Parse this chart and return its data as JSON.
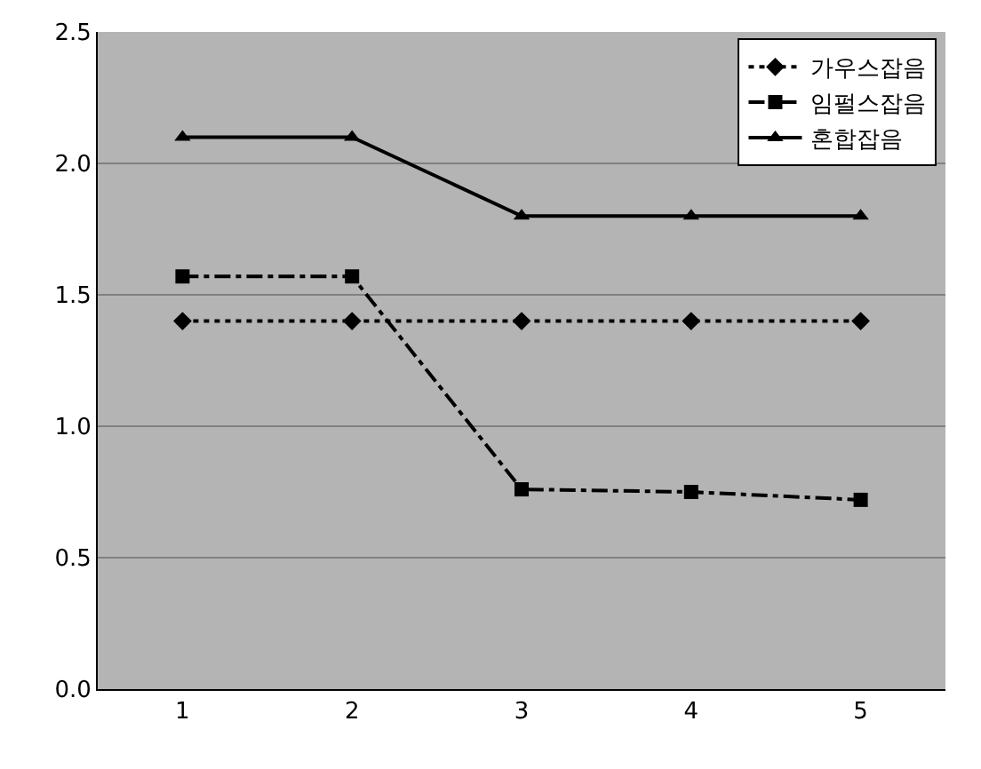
{
  "chart_data": {
    "type": "line",
    "categories": [
      "1",
      "2",
      "3",
      "4",
      "5"
    ],
    "series": [
      {
        "name": "가우스잡음",
        "color": "#000000",
        "values": [
          1.4,
          1.4,
          1.4,
          1.4,
          1.4
        ],
        "line_style": "dotted",
        "marker": "diamond"
      },
      {
        "name": "임펄스잡음",
        "color": "#000000",
        "values": [
          1.57,
          1.57,
          0.76,
          0.75,
          0.72
        ],
        "line_style": "dashed",
        "marker": "square"
      },
      {
        "name": "혼합잡음",
        "color": "#000000",
        "values": [
          2.1,
          2.1,
          1.8,
          1.8,
          1.8
        ],
        "line_style": "solid",
        "marker": "triangle"
      }
    ],
    "ylim": [
      0,
      2.5
    ],
    "yticks": [
      {
        "value": 0,
        "label": "0.0"
      },
      {
        "value": 0.5,
        "label": "0.5"
      },
      {
        "value": 1,
        "label": "1.0"
      },
      {
        "value": 1.5,
        "label": "1.5"
      },
      {
        "value": 2,
        "label": "2.0"
      },
      {
        "value": 2.5,
        "label": "2.5"
      }
    ],
    "grid": "y",
    "legend": "top right"
  }
}
